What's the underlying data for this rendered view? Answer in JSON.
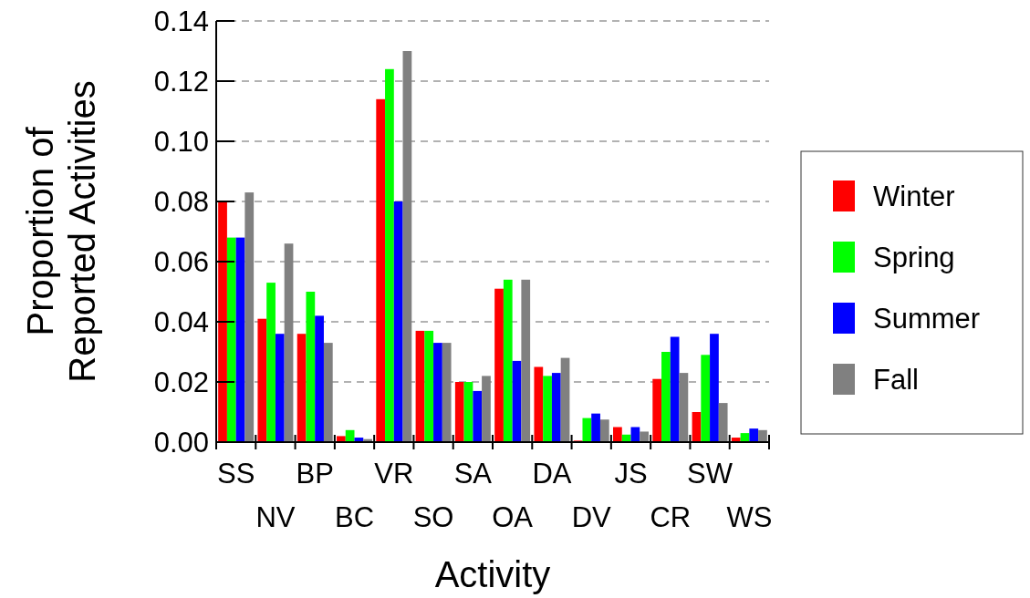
{
  "chart_data": {
    "type": "bar",
    "xlabel": "Activity",
    "ylabel": "Proportion of Reported Activities",
    "categories": [
      "SS",
      "NV",
      "BP",
      "BC",
      "VR",
      "SO",
      "SA",
      "OA",
      "DA",
      "DV",
      "JS",
      "CR",
      "SW",
      "WS"
    ],
    "series": [
      {
        "name": "Winter",
        "color": "#ff0000",
        "values": [
          0.08,
          0.041,
          0.036,
          0.002,
          0.114,
          0.037,
          0.02,
          0.051,
          0.025,
          0.0005,
          0.005,
          0.021,
          0.01,
          0.0015
        ]
      },
      {
        "name": "Spring",
        "color": "#00ff00",
        "values": [
          0.068,
          0.053,
          0.05,
          0.004,
          0.124,
          0.037,
          0.02,
          0.054,
          0.022,
          0.008,
          0.0025,
          0.03,
          0.029,
          0.003
        ]
      },
      {
        "name": "Summer",
        "color": "#0000ff",
        "values": [
          0.068,
          0.036,
          0.042,
          0.0015,
          0.08,
          0.033,
          0.017,
          0.027,
          0.023,
          0.0095,
          0.005,
          0.035,
          0.036,
          0.0045
        ]
      },
      {
        "name": "Fall",
        "color": "#808080",
        "values": [
          0.083,
          0.066,
          0.033,
          0.001,
          0.13,
          0.033,
          0.022,
          0.054,
          0.028,
          0.0075,
          0.0035,
          0.023,
          0.013,
          0.004
        ]
      }
    ],
    "ylim": [
      0,
      0.14
    ],
    "yticks": [
      {
        "value": 0,
        "label": "0.00"
      },
      {
        "value": 0.02,
        "label": "0.02"
      },
      {
        "value": 0.04,
        "label": "0.04"
      },
      {
        "value": 0.06,
        "label": "0.06"
      },
      {
        "value": 0.08,
        "label": "0.08"
      },
      {
        "value": 0.1,
        "label": "0.10"
      },
      {
        "value": 0.12,
        "label": "0.12"
      },
      {
        "value": 0.14,
        "label": "0.14"
      }
    ],
    "grid": "y",
    "legend": "right"
  }
}
